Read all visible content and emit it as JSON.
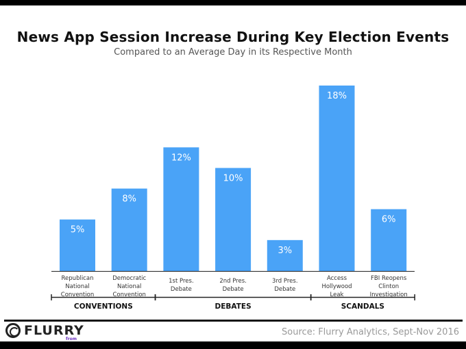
{
  "chart_data": {
    "type": "bar",
    "title": "News App Session Increase During Key Election Events",
    "subtitle": "Compared to an Average Day in its Respective Month",
    "categories": [
      [
        "Republican",
        "National",
        "Convention"
      ],
      [
        "Democratic",
        "National",
        "Convention"
      ],
      [
        "1st Pres.",
        "Debate"
      ],
      [
        "2nd Pres.",
        "Debate"
      ],
      [
        "3rd Pres.",
        "Debate"
      ],
      [
        "Access",
        "Hollywood",
        "Leak"
      ],
      [
        "FBI Reopens",
        "Clinton",
        "Investigation"
      ]
    ],
    "values": [
      5,
      8,
      12,
      10,
      3,
      18,
      6
    ],
    "labels": [
      "5%",
      "8%",
      "12%",
      "10%",
      "3%",
      "18%",
      "6%"
    ],
    "groups": [
      {
        "name": "CONVENTIONS",
        "from": 0,
        "to": 1
      },
      {
        "name": "DEBATES",
        "from": 2,
        "to": 4
      },
      {
        "name": "SCANDALS",
        "from": 5,
        "to": 6
      }
    ],
    "ylim": [
      0,
      18
    ],
    "xlabel": "",
    "ylabel": "",
    "grid": false,
    "bar_color": "#4aa3f7"
  },
  "footer": {
    "source": "Source: Flurry Analytics, Sept-Nov 2016",
    "logo": "FLURRY",
    "logo_sub": "from YAHOO!"
  }
}
